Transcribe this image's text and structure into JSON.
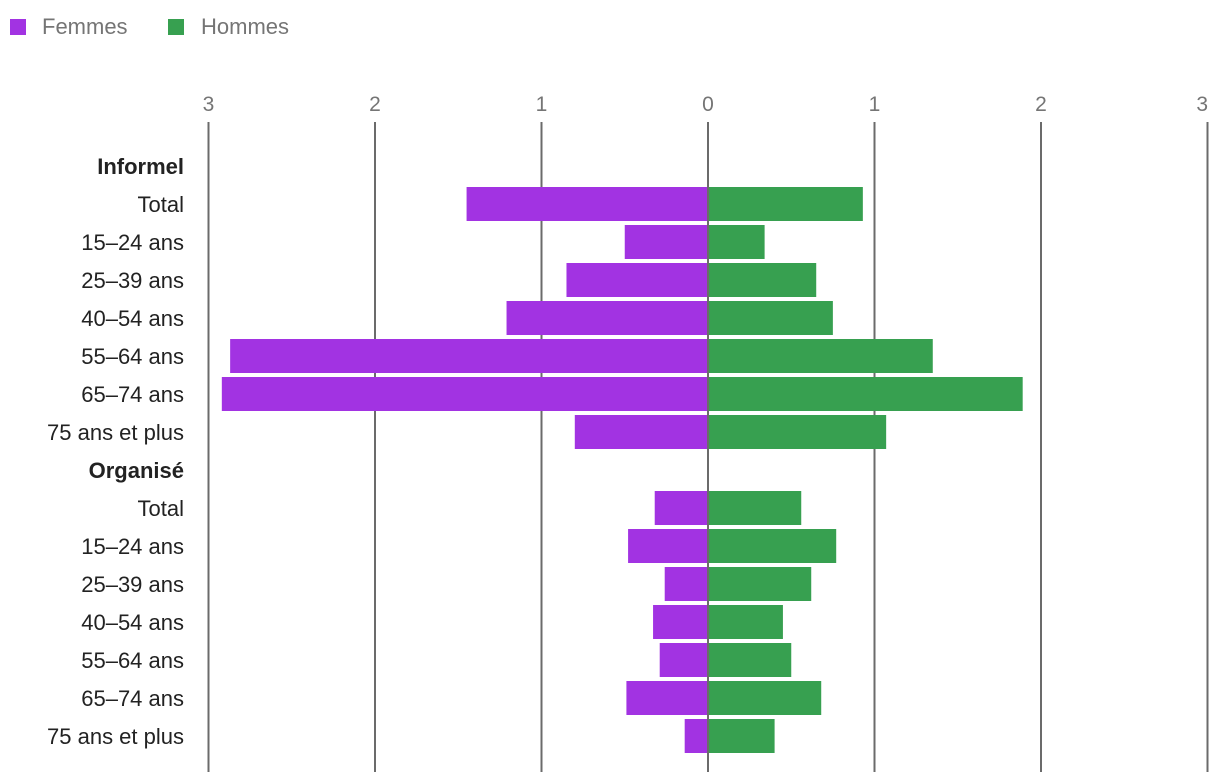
{
  "chart_data": {
    "type": "bar",
    "orientation": "horizontal-diverging",
    "legend": {
      "position": "top-left",
      "items": [
        {
          "label": "Femmes",
          "color": "#a233e2"
        },
        {
          "label": "Hommes",
          "color": "#37a050"
        }
      ]
    },
    "axis": {
      "ticks": [
        3,
        2,
        1,
        0,
        1,
        2,
        3
      ],
      "tick_values": [
        -3,
        -2,
        -1,
        0,
        1,
        2,
        3
      ],
      "range": [
        -3,
        3
      ],
      "grid": true
    },
    "groups": [
      {
        "label": "Informel",
        "categories": [
          "Total",
          "15–24 ans",
          "25–39 ans",
          "40–54 ans",
          "55–64 ans",
          "65–74 ans",
          "75 ans et plus"
        ],
        "series": [
          {
            "name": "Femmes",
            "values": [
              1.45,
              0.5,
              0.85,
              1.21,
              2.87,
              2.92,
              0.8
            ]
          },
          {
            "name": "Hommes",
            "values": [
              0.93,
              0.34,
              0.65,
              0.75,
              1.35,
              1.89,
              1.07
            ]
          }
        ]
      },
      {
        "label": "Organisé",
        "categories": [
          "Total",
          "15–24 ans",
          "25–39 ans",
          "40–54 ans",
          "55–64 ans",
          "65–74 ans",
          "75 ans et plus"
        ],
        "series": [
          {
            "name": "Femmes",
            "values": [
              0.32,
              0.48,
              0.26,
              0.33,
              0.29,
              0.49,
              0.14
            ]
          },
          {
            "name": "Hommes",
            "values": [
              0.56,
              0.77,
              0.62,
              0.45,
              0.5,
              0.68,
              0.4
            ]
          }
        ]
      }
    ]
  }
}
